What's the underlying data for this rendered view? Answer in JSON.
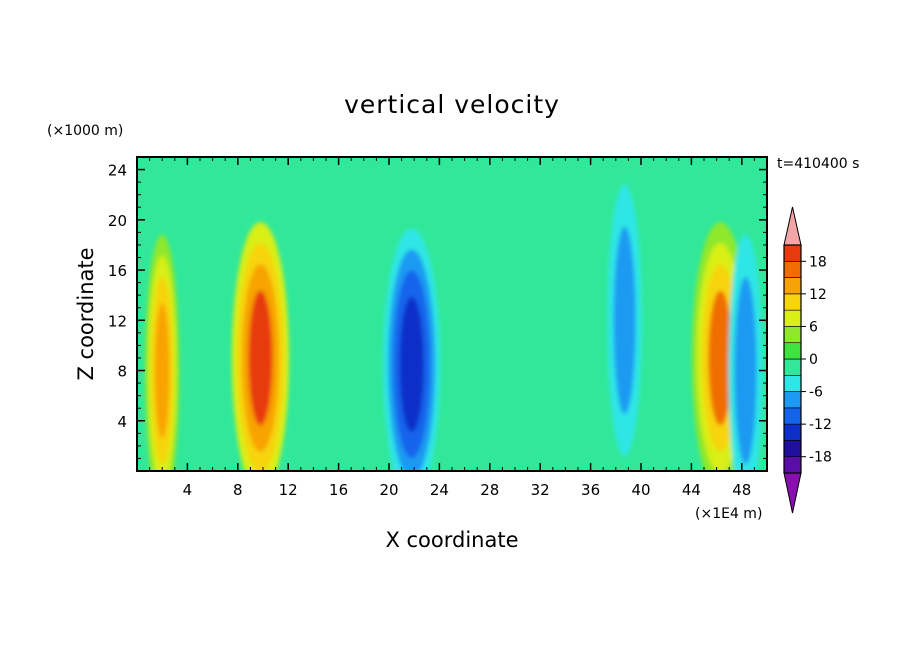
{
  "chart_data": {
    "type": "heatmap",
    "title": "vertical velocity",
    "xlabel": "X coordinate",
    "ylabel": "Z coordinate",
    "x_unit": "(×1E4 m)",
    "y_unit": "(×1000 m)",
    "time_label": "t=410400 s",
    "xlim": [
      0,
      50
    ],
    "ylim": [
      0,
      25
    ],
    "x_ticks": [
      4,
      8,
      12,
      16,
      20,
      24,
      28,
      32,
      36,
      40,
      44,
      48
    ],
    "y_ticks": [
      4,
      8,
      12,
      16,
      20,
      24
    ],
    "colorbar": {
      "levels": [
        -21,
        -18,
        -15,
        -12,
        -9,
        -6,
        -3,
        0,
        3,
        6,
        9,
        12,
        15,
        18,
        21
      ],
      "labels": [
        18,
        12,
        6,
        0,
        -6,
        -12,
        -18
      ],
      "colors": [
        "#8a0fb0",
        "#5a0ea6",
        "#1f0f9a",
        "#0c2fc8",
        "#1463ec",
        "#1f9af2",
        "#2fe6e6",
        "#31e89a",
        "#3fe23f",
        "#8fe82a",
        "#d9ef16",
        "#f7d40b",
        "#f8a305",
        "#f06d06",
        "#e83a0c",
        "#e6140f",
        "#f4a6a6"
      ],
      "extend_low_color": "#8a0fb0",
      "extend_high_color": "#f4a6a6"
    },
    "features": [
      {
        "x": 9.8,
        "z": 9,
        "value": 18
      },
      {
        "x": 2.0,
        "z": 8,
        "value": 12
      },
      {
        "x": 46.3,
        "z": 9,
        "value": 15
      },
      {
        "x": 21.8,
        "z": 8.5,
        "value": -15
      },
      {
        "x": 38.7,
        "z": 12,
        "value": -9
      },
      {
        "x": 48.3,
        "z": 8,
        "value": -9
      }
    ]
  }
}
